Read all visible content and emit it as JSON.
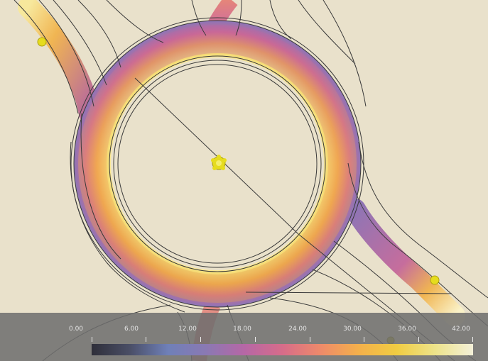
{
  "visualization": {
    "type": "roundabout-intensity-heatmap",
    "background_color": "#e9e1cb",
    "road_line_color": "#3a3a3a",
    "marker_color": "#e6dc1e",
    "marker_icons": [
      "center-flower-marker-icon",
      "approach-marker-icon",
      "approach-marker-icon",
      "approach-marker-icon"
    ]
  },
  "legend": {
    "tick_labels": [
      "0.00",
      "6.00",
      "12.00",
      "18.00",
      "24.00",
      "30.00",
      "36.00",
      "42.00"
    ],
    "min": 0,
    "max": 42,
    "step": 6,
    "ramp_colors": [
      "#2f2f3a",
      "#4a4e66",
      "#6f80b8",
      "#8a79b3",
      "#b667a6",
      "#d66c8a",
      "#ee8a6a",
      "#f4b04b",
      "#f0cc42",
      "#ede38a",
      "#f3f0d8"
    ]
  }
}
